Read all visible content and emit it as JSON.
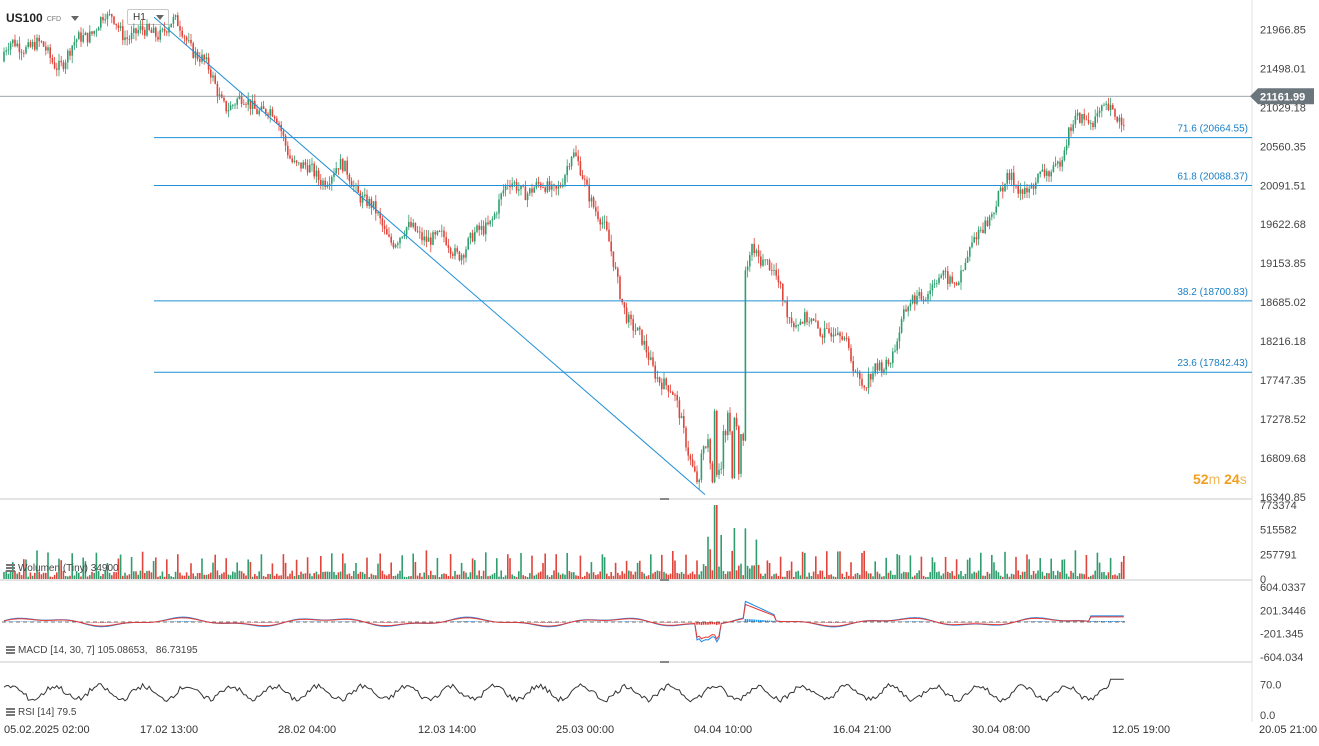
{
  "header": {
    "symbol": "US100",
    "instrument_type": "CFD",
    "timeframe": "H1"
  },
  "price_axis": {
    "ticks": [
      "21966.85",
      "21498.01",
      "21029.18",
      "20560.35",
      "20091.51",
      "19622.68",
      "19153.85",
      "18685.02",
      "18216.18",
      "17747.35",
      "17278.52",
      "16809.68",
      "16340.85"
    ]
  },
  "current_price": {
    "label": "21161.99",
    "value": 21161.99
  },
  "countdown": {
    "minutes": "52",
    "minutes_unit": "m",
    "seconds": "24",
    "seconds_unit": "s"
  },
  "fibonacci": {
    "levels": [
      {
        "label": "71.6 (20664.55)",
        "value": 20664.55
      },
      {
        "label": "61.8 (20088.37)",
        "value": 20088.37
      },
      {
        "label": "38.2 (18700.83)",
        "value": 18700.83
      },
      {
        "label": "23.6 (17842.43)",
        "value": 17842.43
      }
    ]
  },
  "volume_panel": {
    "label": "Wolumen (Tiny) 34900",
    "ticks": [
      "773374",
      "515582",
      "257791",
      "0"
    ]
  },
  "macd_panel": {
    "label": "MACD [14, 30, 7]",
    "value1": "105.08653",
    "value2": "86.73195",
    "ticks": [
      "604.0337",
      "201.3446",
      "-201.345",
      "-604.034"
    ]
  },
  "rsi_panel": {
    "label": "RSI [14]",
    "value": "79.5",
    "ticks": [
      "70.0",
      "0.0"
    ]
  },
  "time_axis": {
    "labels": [
      "05.02.2025  02:00",
      "17.02  13:00",
      "28.02  04:00",
      "12.03  14:00",
      "25.03  00:00",
      "04.04  10:00",
      "16.04  21:00",
      "30.04  08:00",
      "12.05  19:00",
      "20.05  21:00"
    ]
  },
  "colors": {
    "up": "#2e9e6e",
    "down": "#e0443a",
    "line": "#1f8fd6",
    "macd_pos": "#2196f3",
    "macd_neg": "#e53935",
    "countdown": "#f0a020"
  },
  "chart_data": {
    "type": "candlestick",
    "instrument": "US100",
    "timeframe": "H1",
    "y_range": [
      16340.85,
      22200
    ],
    "anchors": [
      {
        "t": "05.02.2025 02:00",
        "close": 21580
      },
      {
        "t": "17.02 13:00",
        "close": 22090
      },
      {
        "t": "28.02 04:00",
        "close": 20560
      },
      {
        "t": "12.03 14:00",
        "close": 19260
      },
      {
        "t": "25.03 00:00",
        "close": 20400
      },
      {
        "t": "04.04 10:00",
        "close": 16370
      },
      {
        "t": "04.04 18:00",
        "close": 19220
      },
      {
        "t": "16.04 21:00",
        "close": 17790
      },
      {
        "t": "30.04 08:00",
        "close": 20000
      },
      {
        "t": "12.05 19:00",
        "close": 21162
      }
    ],
    "fib_levels": [
      20664.55,
      20088.37,
      18700.83,
      17842.43
    ],
    "trendline": {
      "from": {
        "t": "17.02 13:00",
        "price": 22090
      },
      "to": {
        "t": "04.04 10:00",
        "price": 16370
      }
    },
    "volume_range": [
      0,
      773374
    ],
    "macd_range": [
      -604.034,
      604.0337
    ],
    "macd_last": [
      105.08653,
      86.73195
    ],
    "rsi_range": [
      0,
      100
    ],
    "rsi_last": 79.5
  }
}
